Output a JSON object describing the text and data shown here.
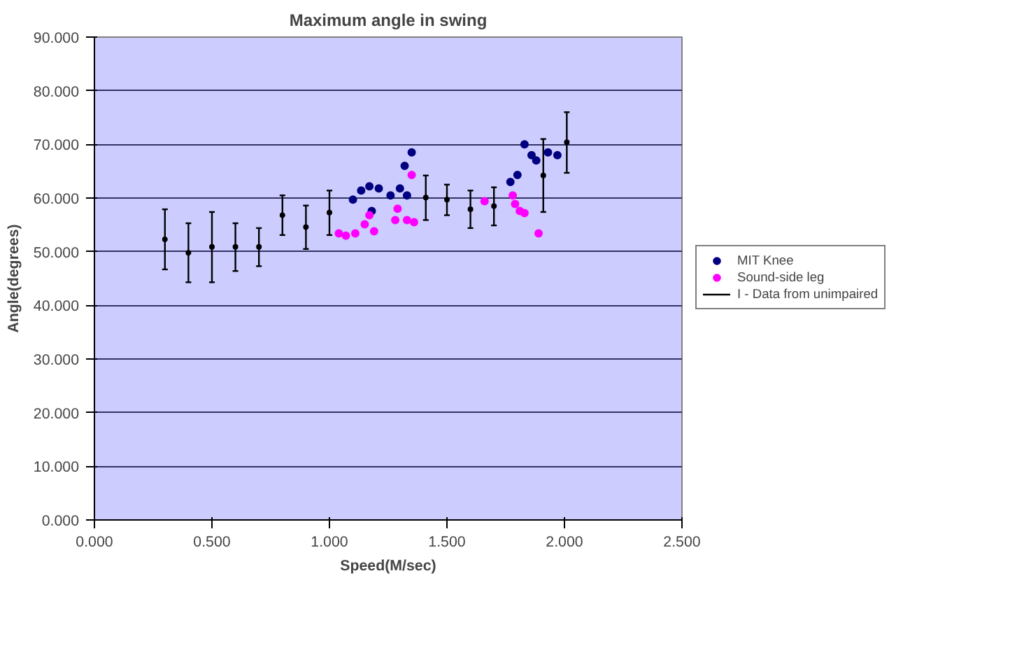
{
  "chart_data": {
    "type": "scatter",
    "title": "Maximum angle in swing",
    "xlabel": "Speed(M/sec)",
    "ylabel": "Angle(degrees)",
    "xlim": [
      0,
      2.5
    ],
    "ylim": [
      0,
      90
    ],
    "xticks": [
      {
        "value": 0,
        "label": "0.000"
      },
      {
        "value": 0.5,
        "label": "0.500"
      },
      {
        "value": 1,
        "label": "1.000"
      },
      {
        "value": 1.5,
        "label": "1.500"
      },
      {
        "value": 2,
        "label": "2.000"
      },
      {
        "value": 2.5,
        "label": "2.500"
      }
    ],
    "yticks": [
      {
        "value": 0,
        "label": "0.000"
      },
      {
        "value": 10,
        "label": "10.000"
      },
      {
        "value": 20,
        "label": "20.000"
      },
      {
        "value": 30,
        "label": "30.000"
      },
      {
        "value": 40,
        "label": "40.000"
      },
      {
        "value": 50,
        "label": "50.000"
      },
      {
        "value": 60,
        "label": "60.000"
      },
      {
        "value": 70,
        "label": "70.000"
      },
      {
        "value": 80,
        "label": "80.000"
      },
      {
        "value": 90,
        "label": "90.000"
      }
    ],
    "grid": "y",
    "legend": "right",
    "marker": "circle",
    "series": [
      {
        "name": "MIT Knee",
        "color": "#000080",
        "x": [
          1.1,
          1.135,
          1.17,
          1.18,
          1.21,
          1.26,
          1.3,
          1.32,
          1.33,
          1.35,
          1.77,
          1.8,
          1.83,
          1.86,
          1.88,
          1.93,
          1.97
        ],
        "values": [
          59.7,
          61.4,
          62.2,
          57.6,
          61.8,
          60.5,
          61.8,
          66,
          60.5,
          68.5,
          63.0,
          64.3,
          70,
          68,
          67,
          68.5,
          68
        ]
      },
      {
        "name": "Sound-side leg",
        "color": "#ff00ff",
        "x": [
          1.04,
          1.07,
          1.11,
          1.15,
          1.17,
          1.19,
          1.28,
          1.29,
          1.33,
          1.35,
          1.36,
          1.66,
          1.78,
          1.79,
          1.81,
          1.83,
          1.89
        ],
        "values": [
          53.4,
          53.0,
          53.4,
          55.1,
          56.8,
          53.8,
          55.9,
          58.0,
          55.9,
          64.3,
          55.5,
          59.4,
          60.5,
          58.9,
          57.6,
          57.2,
          53.4
        ]
      },
      {
        "name": "I - Data from unimpaired",
        "color": "#000000",
        "marker": "circle",
        "x": [
          0.3,
          0.4,
          0.5,
          0.6,
          0.7,
          0.8,
          0.9,
          1.0,
          1.41,
          1.5,
          1.6,
          1.7,
          1.91,
          2.01
        ],
        "values": [
          52.3,
          49.8,
          50.9,
          50.9,
          50.9,
          56.8,
          54.6,
          57.3,
          60.1,
          59.7,
          57.9,
          58.5,
          64.2,
          70.4
        ],
        "errors": [
          [
            46.7,
            57.9
          ],
          [
            44.3,
            55.3
          ],
          [
            44.3,
            57.4
          ],
          [
            46.4,
            55.3
          ],
          [
            47.3,
            54.4
          ],
          [
            53.1,
            60.5
          ],
          [
            50.5,
            58.6
          ],
          [
            53.1,
            61.4
          ],
          [
            55.9,
            64.2
          ],
          [
            56.8,
            62.5
          ],
          [
            54.4,
            61.4
          ],
          [
            54.9,
            62.0
          ],
          [
            57.4,
            71.0
          ],
          [
            64.7,
            76.0
          ]
        ]
      }
    ]
  }
}
